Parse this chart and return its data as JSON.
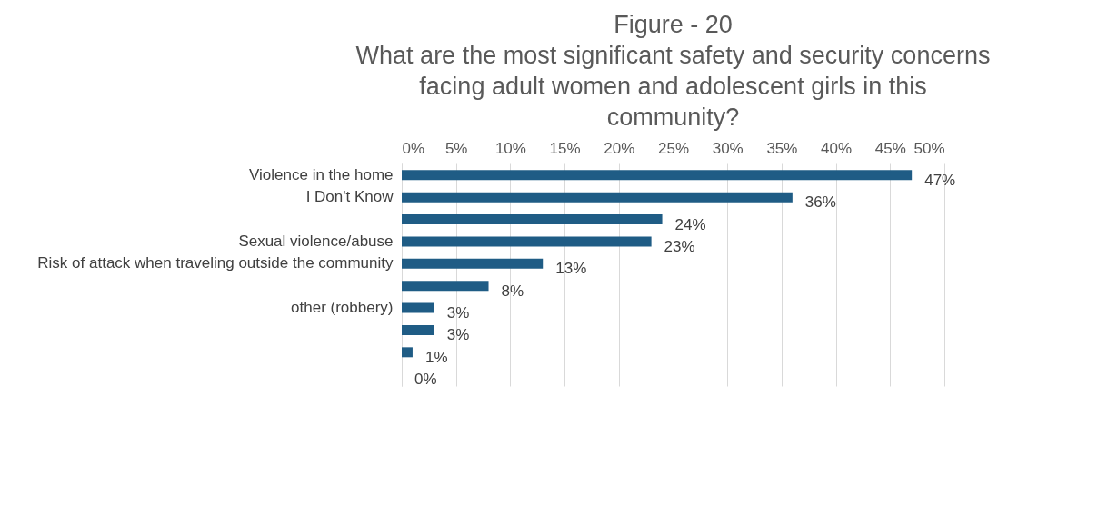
{
  "chart_data": {
    "type": "bar",
    "orientation": "horizontal",
    "title": [
      "Figure - 20",
      "What are the most significant safety and security concerns",
      "facing adult women and adolescent girls in this",
      "community?"
    ],
    "categories": [
      "Violence in the home",
      "I Don't Know",
      null,
      "Sexual violence/abuse",
      "Risk of attack when traveling outside the community",
      null,
      "other (robbery)",
      null,
      null,
      null
    ],
    "values": [
      47,
      36,
      24,
      23,
      13,
      8,
      3,
      3,
      1,
      0
    ],
    "value_labels": [
      "47%",
      "36%",
      "24%",
      "23%",
      "13%",
      "8%",
      "3%",
      "3%",
      "1%",
      "0%"
    ],
    "color": "#1f5c85",
    "xlim": [
      0,
      50
    ],
    "xticks": [
      {
        "value": 0,
        "label": "0%"
      },
      {
        "value": 5,
        "label": "5%"
      },
      {
        "value": 10,
        "label": "10%"
      },
      {
        "value": 15,
        "label": "15%"
      },
      {
        "value": 20,
        "label": "20%"
      },
      {
        "value": 25,
        "label": "25%"
      },
      {
        "value": 30,
        "label": "30%"
      },
      {
        "value": 35,
        "label": "35%"
      },
      {
        "value": 40,
        "label": "40%"
      },
      {
        "value": 45,
        "label": "45%"
      },
      {
        "value": 50,
        "label": "50%"
      }
    ],
    "grid": "x"
  }
}
